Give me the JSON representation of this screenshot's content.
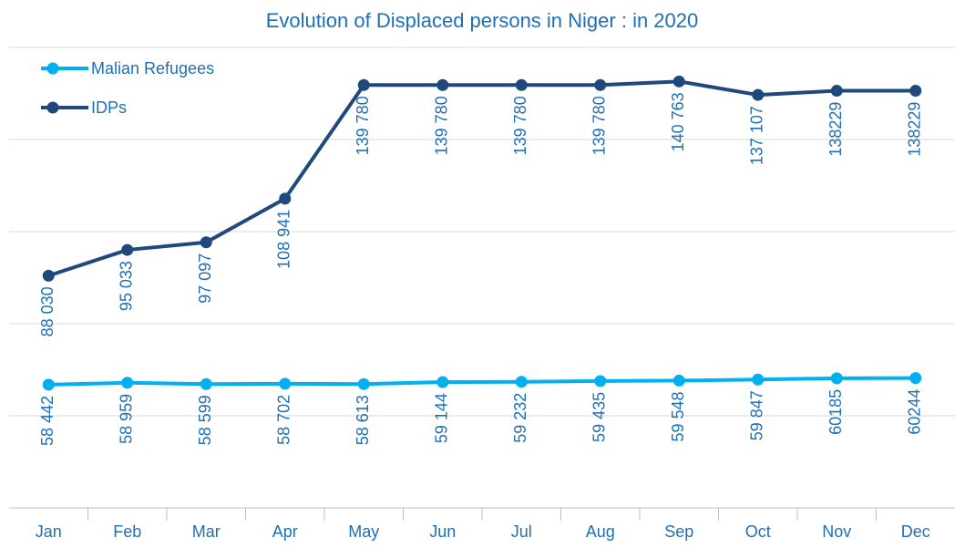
{
  "chart_data": {
    "type": "line",
    "title": "Evolution of Displaced persons in Niger : in 2020",
    "categories": [
      "Jan",
      "Feb",
      "Mar",
      "Apr",
      "May",
      "Jun",
      "Jul",
      "Aug",
      "Sep",
      "Oct",
      "Nov",
      "Dec"
    ],
    "series": [
      {
        "name": "Malian Refugees",
        "color": "#00b0f0",
        "values": [
          58442,
          58959,
          58599,
          58702,
          58613,
          59144,
          59232,
          59435,
          59548,
          59847,
          60185,
          60244
        ],
        "value_labels": [
          "58 442",
          "58 959",
          "58 599",
          "58 702",
          "58 613",
          "59 144",
          "59 232",
          "59 435",
          "59 548",
          "59 847",
          "60185",
          "60244"
        ]
      },
      {
        "name": "IDPs",
        "color": "#1f497d",
        "values": [
          88030,
          95033,
          97097,
          108941,
          139780,
          139780,
          139780,
          139780,
          140763,
          137107,
          138229,
          138229
        ],
        "value_labels": [
          "88 030",
          "95 033",
          "97 097",
          "108 941",
          "139 780",
          "139 780",
          "139 780",
          "139 780",
          "140 763",
          "137 107",
          "138229",
          "138229"
        ]
      }
    ],
    "ylim": [
      25000,
      150000
    ],
    "yticks": [
      25000,
      50000,
      75000,
      100000,
      125000,
      150000
    ],
    "grid": true,
    "legend": "top-left"
  }
}
